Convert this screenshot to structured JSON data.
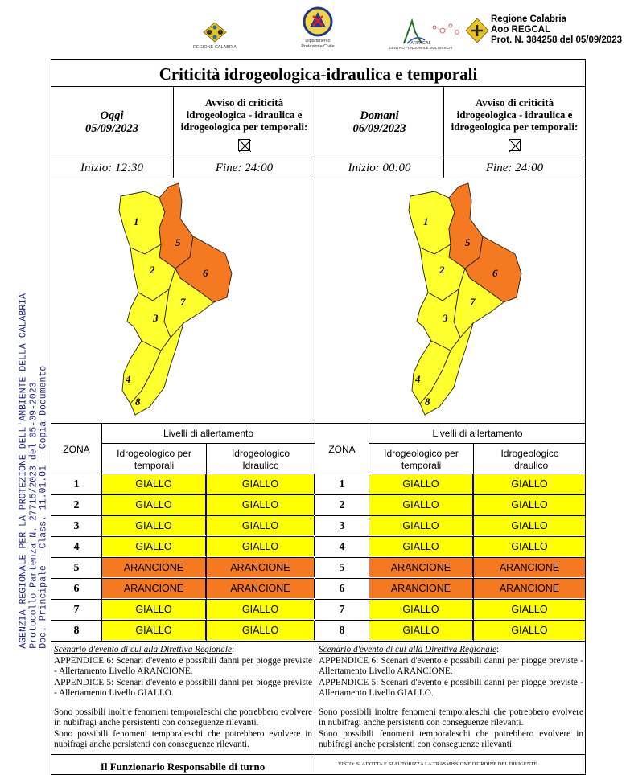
{
  "header": {
    "logos": [
      {
        "name": "regione-calabria-logo",
        "caption": "REGIONE CALABRIA"
      },
      {
        "name": "protezione-civile-logo",
        "caption_line1": "Dipartimento",
        "caption_line2": "Protezione Civile"
      },
      {
        "name": "arpacal-logo",
        "caption_line1": "ARPACAL",
        "caption_line2": "CENTRO FUNZIONALE MULTIRISCHI"
      }
    ],
    "protocol": {
      "line1": "Regione Calabria",
      "line2": "Aoo REGCAL",
      "line3": "Prot. N. 384258 del 05/09/2023"
    }
  },
  "side_stamp": {
    "line1": "AGENZIA REGIONALE PER LA PROTEZIONE DELL'AMBIENTE DELLA CALABRIA",
    "line2": "Protocollo Partenza N. 27715/2023 del 05-09-2023",
    "line3": "Doc. Principale - Class. 11.01.01 - Copia Documento"
  },
  "title": "Criticità idrogeologica-idraulica e temporali",
  "days": [
    {
      "label": "Oggi",
      "date": "05/09/2023",
      "avviso_line1": "Avviso di criticità",
      "avviso_line2": "idrogeologica - idraulica e",
      "avviso_line3": "idrogeologica per temporali:",
      "inizio": "Inizio: 12:30",
      "fine": "Fine: 24:00",
      "zone_labels": [
        "1",
        "5",
        "2",
        "6",
        "7",
        "3",
        "4",
        "8"
      ],
      "table": {
        "zona_header": "ZONA",
        "livelli_header": "Livelli di allertamento",
        "col1_line1": "Idrogeologico per",
        "col1_line2": "temporali",
        "col2_line1": "Idrogeologico",
        "col2_line2": "Idraulico",
        "rows": [
          {
            "zona": "1",
            "a": "GIALLO",
            "b": "GIALLO"
          },
          {
            "zona": "2",
            "a": "GIALLO",
            "b": "GIALLO"
          },
          {
            "zona": "3",
            "a": "GIALLO",
            "b": "GIALLO"
          },
          {
            "zona": "4",
            "a": "GIALLO",
            "b": "GIALLO"
          },
          {
            "zona": "5",
            "a": "ARANCIONE",
            "b": "ARANCIONE"
          },
          {
            "zona": "6",
            "a": "ARANCIONE",
            "b": "ARANCIONE"
          },
          {
            "zona": "7",
            "a": "GIALLO",
            "b": "GIALLO"
          },
          {
            "zona": "8",
            "a": "GIALLO",
            "b": "GIALLO"
          }
        ]
      },
      "scenario": {
        "heading": "Scenario d'evento di cui alla Direttiva Regionale",
        "p1": "APPENDICE 6: Scenari d'evento e possibili danni per piogge previste - Allertamento Livello ARANCIONE.",
        "p2": "APPENDICE 5: Scenari d'evento e possibili danni per piogge previste - Allertamento Livello GIALLO.",
        "p3": "Sono possibili inoltre fenomeni temporaleschi che potrebbero evolvere in nubifragi anche persistenti con conseguenze rilevanti.",
        "p4": "Sono possibili fenomeni temporaleschi che potrebbero evolvere in nubifragi anche persistenti con conseguenze rilevanti."
      }
    },
    {
      "label": "Domani",
      "date": "06/09/2023",
      "avviso_line1": "Avviso di criticità",
      "avviso_line2": "idrogeologica - idraulica e",
      "avviso_line3": "idrogeologica per temporali:",
      "inizio": "Inizio: 00:00",
      "fine": "Fine: 24:00",
      "zone_labels": [
        "1",
        "5",
        "2",
        "6",
        "7",
        "3",
        "4",
        "8"
      ],
      "table": {
        "zona_header": "ZONA",
        "livelli_header": "Livelli di allertamento",
        "col1_line1": "Idrogeologico per",
        "col1_line2": "temporali",
        "col2_line1": "Idrogeologico",
        "col2_line2": "Idraulico",
        "rows": [
          {
            "zona": "1",
            "a": "GIALLO",
            "b": "GIALLO"
          },
          {
            "zona": "2",
            "a": "GIALLO",
            "b": "GIALLO"
          },
          {
            "zona": "3",
            "a": "GIALLO",
            "b": "GIALLO"
          },
          {
            "zona": "4",
            "a": "GIALLO",
            "b": "GIALLO"
          },
          {
            "zona": "5",
            "a": "ARANCIONE",
            "b": "ARANCIONE"
          },
          {
            "zona": "6",
            "a": "ARANCIONE",
            "b": "ARANCIONE"
          },
          {
            "zona": "7",
            "a": "GIALLO",
            "b": "GIALLO"
          },
          {
            "zona": "8",
            "a": "GIALLO",
            "b": "GIALLO"
          }
        ]
      },
      "scenario": {
        "heading": "Scenario d'evento di cui alla Direttiva Regionale",
        "p1": "APPENDICE 6: Scenari d'evento e possibili danni per piogge previste - Allertamento Livello ARANCIONE.",
        "p2": "APPENDICE 5: Scenari d'evento e possibili danni per piogge previste - Allertamento Livello GIALLO.",
        "p3": "Sono possibili inoltre fenomeni temporaleschi che potrebbero evolvere in nubifragi anche persistenti con conseguenze rilevanti.",
        "p4": "Sono possibili fenomeni temporaleschi che potrebbero evolvere in nubifragi anche persistenti con conseguenze rilevanti."
      }
    }
  ],
  "footer": {
    "left": "Il Funzionario Responsabile di turno",
    "right_line1": "VISTO: SI ADOTTA E SI AUTORIZZA LA TRASMISSIONE D'ORDINE DEL DIRIGENTE",
    "right_line2": ""
  },
  "colors": {
    "giallo": "#ffff00",
    "arancione": "#f47920",
    "map_yellow": "#ffff2e",
    "map_orange": "#f47920"
  }
}
